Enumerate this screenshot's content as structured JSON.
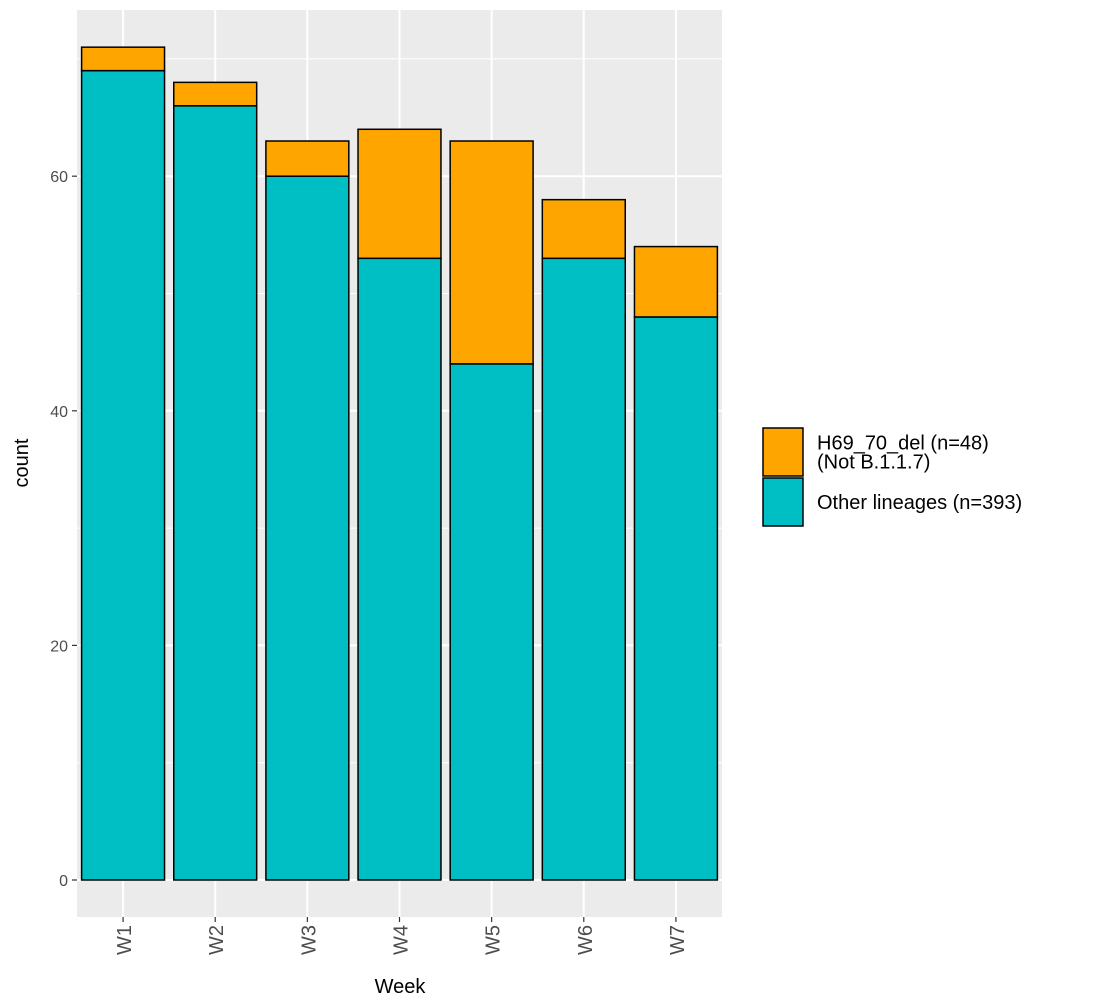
{
  "chart_data": {
    "type": "bar",
    "stacked": true,
    "categories": [
      "W1",
      "W2",
      "W3",
      "W4",
      "W5",
      "W6",
      "W7"
    ],
    "series": [
      {
        "name": "Other lineages (n=393)",
        "color": "#00BFC4",
        "values": [
          69,
          66,
          60,
          53,
          44,
          53,
          48
        ]
      },
      {
        "name": "H69_70_del (n=48)\n(Not B.1.1.7)",
        "color": "#FFA500",
        "values": [
          2,
          2,
          3,
          11,
          19,
          5,
          6
        ]
      }
    ],
    "legend_order": [
      1,
      0
    ],
    "xlabel": "Week",
    "ylabel": "count",
    "ylim": [
      0,
      74
    ],
    "yticks": [
      0,
      20,
      40,
      60
    ],
    "x_tick_rotation": "vertical",
    "grid": true,
    "panel_background": "#EBEBEB",
    "legend_position": "right"
  }
}
